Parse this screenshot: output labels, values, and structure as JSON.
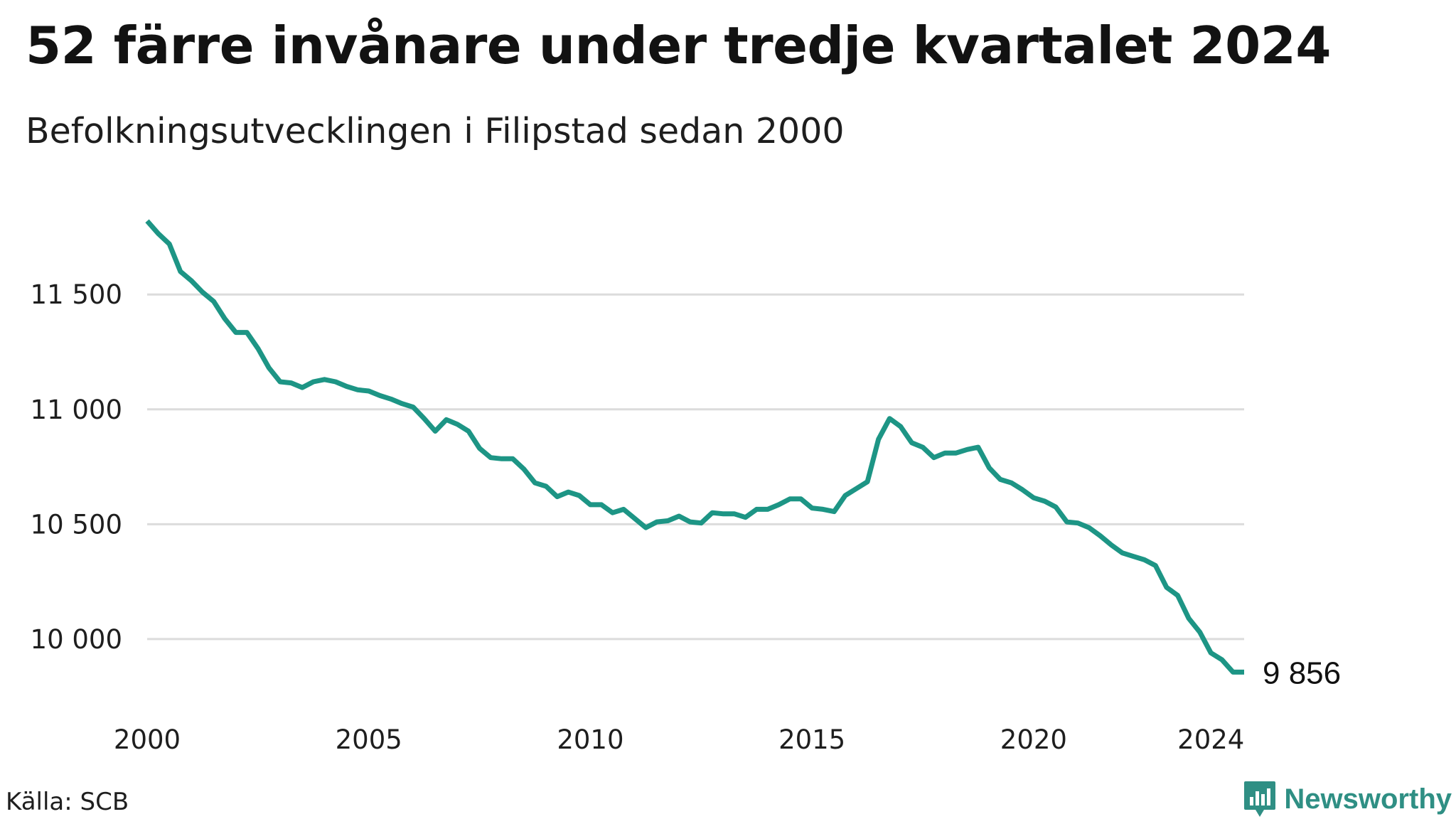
{
  "title": "52 färre invånare under tredje kvartalet 2024",
  "subtitle": "Befolkningsutvecklingen i Filipstad sedan 2000",
  "source": "Källa: SCB",
  "brand": {
    "name": "Newsworthy",
    "icon": "newsworthy-logo-icon",
    "color": "#2f8f84"
  },
  "chart_data": {
    "type": "line",
    "title": "52 färre invånare under tredje kvartalet 2024",
    "subtitle": "Befolkningsutvecklingen i Filipstad sedan 2000",
    "xlabel": "",
    "ylabel": "",
    "x_ticks": [
      "2000",
      "2005",
      "2010",
      "2015",
      "2020",
      "2024"
    ],
    "x_tick_values": [
      2000,
      2005,
      2010,
      2015,
      2020,
      2024
    ],
    "y_ticks": [
      "10 000",
      "10 500",
      "11 000",
      "11 500"
    ],
    "y_tick_values": [
      10000,
      10500,
      11000,
      11500
    ],
    "xlim": [
      2000,
      2024.75
    ],
    "ylim": [
      9780,
      11900
    ],
    "grid": "horizontal",
    "line_color": "#1d9585",
    "end_label": "9 856",
    "series": [
      {
        "x": [
          2000.0,
          2000.25,
          2000.5,
          2000.75,
          2001.0,
          2001.25,
          2001.5,
          2001.75,
          2002.0,
          2002.25,
          2002.5,
          2002.75,
          2003.0,
          2003.25,
          2003.5,
          2003.75,
          2004.0,
          2004.25,
          2004.5,
          2004.75,
          2005.0,
          2005.25,
          2005.5,
          2005.75,
          2006.0,
          2006.25,
          2006.5,
          2006.75,
          2007.0,
          2007.25,
          2007.5,
          2007.75,
          2008.0,
          2008.25,
          2008.5,
          2008.75,
          2009.0,
          2009.25,
          2009.5,
          2009.75,
          2010.0,
          2010.25,
          2010.5,
          2010.75,
          2011.0,
          2011.25,
          2011.5,
          2011.75,
          2012.0,
          2012.25,
          2012.5,
          2012.75,
          2013.0,
          2013.25,
          2013.5,
          2013.75,
          2014.0,
          2014.25,
          2014.5,
          2014.75,
          2015.0,
          2015.25,
          2015.5,
          2015.75,
          2016.0,
          2016.25,
          2016.5,
          2016.75,
          2017.0,
          2017.25,
          2017.5,
          2017.75,
          2018.0,
          2018.25,
          2018.5,
          2018.75,
          2019.0,
          2019.25,
          2019.5,
          2019.75,
          2020.0,
          2020.25,
          2020.5,
          2020.75,
          2021.0,
          2021.25,
          2021.5,
          2021.75,
          2022.0,
          2022.25,
          2022.5,
          2022.75,
          2023.0,
          2023.25,
          2023.5,
          2023.75,
          2024.0,
          2024.25,
          2024.5,
          2024.75
        ],
        "values": [
          11820,
          11765,
          11720,
          11600,
          11560,
          11510,
          11470,
          11395,
          11335,
          11335,
          11265,
          11180,
          11120,
          11115,
          11095,
          11120,
          11130,
          11120,
          11100,
          11085,
          11080,
          11060,
          11045,
          11025,
          11010,
          10960,
          10905,
          10955,
          10935,
          10905,
          10830,
          10790,
          10785,
          10785,
          10740,
          10680,
          10665,
          10620,
          10640,
          10625,
          10585,
          10585,
          10550,
          10565,
          10525,
          10485,
          10510,
          10515,
          10535,
          10510,
          10505,
          10550,
          10545,
          10545,
          10530,
          10565,
          10565,
          10585,
          10610,
          10610,
          10570,
          10565,
          10555,
          10625,
          10655,
          10685,
          10870,
          10960,
          10925,
          10855,
          10835,
          10790,
          10810,
          10810,
          10825,
          10835,
          10745,
          10695,
          10680,
          10650,
          10615,
          10600,
          10575,
          10510,
          10505,
          10485,
          10450,
          10410,
          10375,
          10360,
          10345,
          10320,
          10225,
          10190,
          10090,
          10030,
          9940,
          9910,
          9856,
          9856
        ]
      }
    ]
  }
}
